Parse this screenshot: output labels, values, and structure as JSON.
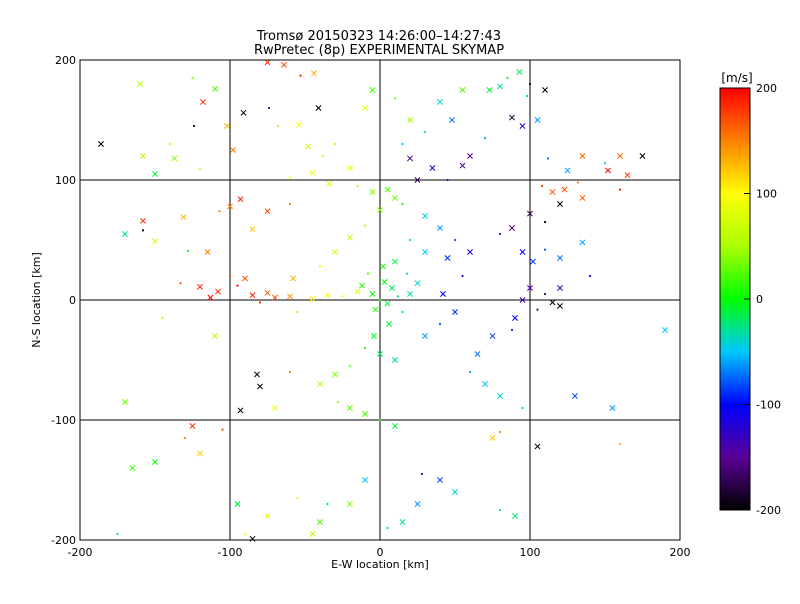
{
  "chart_data": {
    "type": "scatter",
    "title": "Tromsø 20150323 14:26:00–14:27:43",
    "subtitle": "RwPretec (8p) EXPERIMENTAL SKYMAP",
    "xlabel": "E-W location [km]",
    "ylabel": "N-S location [km]",
    "xlim": [
      -200,
      200
    ],
    "ylim": [
      -200,
      200
    ],
    "xticks": [
      -200,
      -100,
      0,
      100,
      200
    ],
    "yticks": [
      -200,
      -100,
      0,
      100,
      200
    ],
    "grid_lines_x": [
      -100,
      0,
      100
    ],
    "grid_lines_y": [
      -100,
      0,
      100
    ],
    "colorbar": {
      "label": "[m/s]",
      "min": -200,
      "max": 200,
      "ticks": [
        200,
        100,
        0,
        -100,
        -200
      ],
      "placement": "right"
    },
    "marker_types": [
      "x",
      "dot"
    ],
    "series": [
      {
        "points": [
          [
            -75,
            198,
            180
          ],
          [
            -64,
            196,
            170
          ],
          [
            -53,
            187,
            190
          ],
          [
            -44,
            189,
            130
          ],
          [
            -118,
            165,
            180
          ],
          [
            -74,
            160,
            -150
          ],
          [
            -41,
            160,
            -200
          ],
          [
            -91,
            156,
            -200
          ],
          [
            -68,
            145,
            120
          ],
          [
            -54,
            146,
            100
          ],
          [
            -102,
            145,
            130
          ],
          [
            -124,
            145,
            -200
          ],
          [
            -158,
            120,
            60
          ],
          [
            -137,
            118,
            40
          ],
          [
            -120,
            109,
            60
          ],
          [
            -98,
            125,
            150
          ],
          [
            -100,
            78,
            150
          ],
          [
            -60,
            102,
            100
          ],
          [
            -45,
            106,
            90
          ],
          [
            -34,
            97,
            80
          ],
          [
            -107,
            74,
            150
          ],
          [
            -93,
            84,
            190
          ],
          [
            -75,
            74,
            170
          ],
          [
            -60,
            80,
            150
          ],
          [
            -131,
            69,
            130
          ],
          [
            -158,
            66,
            180
          ],
          [
            -158,
            58,
            -200
          ],
          [
            -170,
            55,
            -30
          ],
          [
            -150,
            49,
            70
          ],
          [
            -128,
            41,
            -10
          ],
          [
            -85,
            59,
            120
          ],
          [
            -115,
            40,
            150
          ],
          [
            -133,
            14,
            170
          ],
          [
            -120,
            11,
            190
          ],
          [
            -108,
            7,
            180
          ],
          [
            -95,
            12,
            200
          ],
          [
            -85,
            4,
            190
          ],
          [
            -75,
            6,
            160
          ],
          [
            -80,
            -2,
            180
          ],
          [
            -70,
            2,
            170
          ],
          [
            -113,
            2,
            200
          ],
          [
            -100,
            20,
            180
          ],
          [
            -90,
            18,
            170
          ],
          [
            -60,
            3,
            140
          ],
          [
            -55,
            -10,
            120
          ],
          [
            -45,
            1,
            110
          ],
          [
            -35,
            4,
            100
          ],
          [
            -25,
            3,
            90
          ],
          [
            -15,
            7,
            80
          ],
          [
            -58,
            18,
            130
          ],
          [
            -40,
            28,
            90
          ],
          [
            -30,
            40,
            70
          ],
          [
            -20,
            52,
            60
          ],
          [
            -10,
            62,
            50
          ],
          [
            0,
            75,
            40
          ],
          [
            10,
            85,
            30
          ],
          [
            -15,
            95,
            50
          ],
          [
            -5,
            90,
            40
          ],
          [
            5,
            92,
            20
          ],
          [
            15,
            80,
            10
          ],
          [
            -12,
            12,
            10
          ],
          [
            -5,
            5,
            0
          ],
          [
            0,
            0,
            0
          ],
          [
            5,
            -3,
            -10
          ],
          [
            8,
            10,
            -20
          ],
          [
            12,
            3,
            -30
          ],
          [
            -3,
            -8,
            10
          ],
          [
            3,
            15,
            0
          ],
          [
            -8,
            22,
            20
          ],
          [
            2,
            28,
            10
          ],
          [
            10,
            32,
            -10
          ],
          [
            18,
            22,
            -20
          ],
          [
            25,
            14,
            -40
          ],
          [
            20,
            5,
            -30
          ],
          [
            15,
            -10,
            -20
          ],
          [
            6,
            -20,
            -10
          ],
          [
            -4,
            -30,
            0
          ],
          [
            -10,
            -40,
            10
          ],
          [
            0,
            -45,
            -20
          ],
          [
            10,
            -50,
            -30
          ],
          [
            -20,
            -55,
            30
          ],
          [
            -30,
            -62,
            40
          ],
          [
            -40,
            -70,
            50
          ],
          [
            -28,
            -85,
            40
          ],
          [
            -20,
            -90,
            30
          ],
          [
            -10,
            -95,
            20
          ],
          [
            0,
            -100,
            0
          ],
          [
            10,
            -105,
            -10
          ],
          [
            30,
            -30,
            -60
          ],
          [
            40,
            -20,
            -80
          ],
          [
            50,
            -10,
            -90
          ],
          [
            42,
            5,
            -100
          ],
          [
            55,
            20,
            -110
          ],
          [
            45,
            35,
            -90
          ],
          [
            60,
            40,
            -120
          ],
          [
            50,
            50,
            -80
          ],
          [
            40,
            60,
            -60
          ],
          [
            30,
            70,
            -40
          ],
          [
            20,
            50,
            -30
          ],
          [
            30,
            40,
            -50
          ],
          [
            35,
            110,
            -120
          ],
          [
            45,
            100,
            -130
          ],
          [
            55,
            112,
            -140
          ],
          [
            60,
            120,
            -150
          ],
          [
            70,
            135,
            -60
          ],
          [
            48,
            150,
            -70
          ],
          [
            40,
            165,
            -40
          ],
          [
            30,
            140,
            -20
          ],
          [
            20,
            118,
            -160
          ],
          [
            25,
            100,
            -170
          ],
          [
            15,
            130,
            -50
          ],
          [
            55,
            175,
            20
          ],
          [
            73,
            175,
            -10
          ],
          [
            85,
            185,
            -10
          ],
          [
            93,
            190,
            -20
          ],
          [
            80,
            178,
            -30
          ],
          [
            98,
            170,
            -40
          ],
          [
            105,
            150,
            -60
          ],
          [
            88,
            152,
            -180
          ],
          [
            100,
            180,
            -200
          ],
          [
            110,
            175,
            -200
          ],
          [
            95,
            145,
            -130
          ],
          [
            112,
            118,
            -70
          ],
          [
            125,
            108,
            -60
          ],
          [
            135,
            120,
            160
          ],
          [
            150,
            114,
            -50
          ],
          [
            160,
            120,
            160
          ],
          [
            165,
            104,
            180
          ],
          [
            160,
            92,
            190
          ],
          [
            152,
            108,
            200
          ],
          [
            175,
            120,
            -200
          ],
          [
            108,
            95,
            180
          ],
          [
            115,
            90,
            160
          ],
          [
            123,
            92,
            170
          ],
          [
            132,
            98,
            150
          ],
          [
            135,
            85,
            160
          ],
          [
            120,
            80,
            -200
          ],
          [
            110,
            65,
            -200
          ],
          [
            100,
            72,
            -180
          ],
          [
            88,
            60,
            -160
          ],
          [
            80,
            55,
            -150
          ],
          [
            95,
            40,
            -100
          ],
          [
            102,
            32,
            -90
          ],
          [
            110,
            42,
            -80
          ],
          [
            120,
            35,
            -70
          ],
          [
            135,
            48,
            -60
          ],
          [
            140,
            20,
            -120
          ],
          [
            120,
            10,
            -130
          ],
          [
            100,
            10,
            -150
          ],
          [
            110,
            5,
            -170
          ],
          [
            115,
            -2,
            -200
          ],
          [
            120,
            -5,
            -190
          ],
          [
            105,
            -8,
            -160
          ],
          [
            95,
            0,
            -140
          ],
          [
            90,
            -15,
            -100
          ],
          [
            88,
            -25,
            -90
          ],
          [
            75,
            -30,
            -80
          ],
          [
            65,
            -45,
            -70
          ],
          [
            60,
            -60,
            -60
          ],
          [
            70,
            -70,
            -50
          ],
          [
            80,
            -80,
            -40
          ],
          [
            95,
            -90,
            -30
          ],
          [
            105,
            -122,
            -200
          ],
          [
            190,
            -25,
            -50
          ],
          [
            160,
            -120,
            130
          ],
          [
            155,
            -90,
            -60
          ],
          [
            130,
            -80,
            -80
          ],
          [
            80,
            -110,
            150
          ],
          [
            75,
            -115,
            120
          ],
          [
            90,
            -180,
            -20
          ],
          [
            80,
            -175,
            -30
          ],
          [
            50,
            -160,
            -40
          ],
          [
            40,
            -150,
            -80
          ],
          [
            28,
            -145,
            -110
          ],
          [
            25,
            -170,
            -60
          ],
          [
            15,
            -185,
            -30
          ],
          [
            5,
            -190,
            -30
          ],
          [
            -10,
            -150,
            -50
          ],
          [
            -20,
            -170,
            40
          ],
          [
            -35,
            -170,
            -30
          ],
          [
            -40,
            -185,
            20
          ],
          [
            -45,
            -195,
            60
          ],
          [
            -55,
            -165,
            80
          ],
          [
            -75,
            -180,
            90
          ],
          [
            -95,
            -170,
            -10
          ],
          [
            -90,
            -195,
            100
          ],
          [
            -85,
            -199,
            -200
          ],
          [
            -120,
            -128,
            120
          ],
          [
            -130,
            -115,
            150
          ],
          [
            -125,
            -105,
            180
          ],
          [
            -93,
            -92,
            -200
          ],
          [
            -105,
            -108,
            170
          ],
          [
            -80,
            -72,
            -200
          ],
          [
            -82,
            -62,
            -200
          ],
          [
            -60,
            -60,
            150
          ],
          [
            -70,
            -90,
            100
          ],
          [
            -150,
            -135,
            0
          ],
          [
            -175,
            -195,
            -20
          ],
          [
            -170,
            -85,
            30
          ],
          [
            -165,
            -140,
            20
          ],
          [
            -145,
            -15,
            50
          ],
          [
            -110,
            -30,
            60
          ],
          [
            -150,
            105,
            -10
          ],
          [
            -140,
            130,
            60
          ],
          [
            -186,
            130,
            -200
          ],
          [
            -160,
            180,
            60
          ],
          [
            -125,
            185,
            40
          ],
          [
            -110,
            176,
            20
          ],
          [
            -5,
            175,
            20
          ],
          [
            10,
            168,
            30
          ],
          [
            20,
            150,
            50
          ],
          [
            -10,
            160,
            80
          ],
          [
            -30,
            130,
            60
          ],
          [
            -48,
            128,
            70
          ],
          [
            -20,
            110,
            80
          ],
          [
            -38,
            120,
            110
          ]
        ]
      }
    ]
  }
}
